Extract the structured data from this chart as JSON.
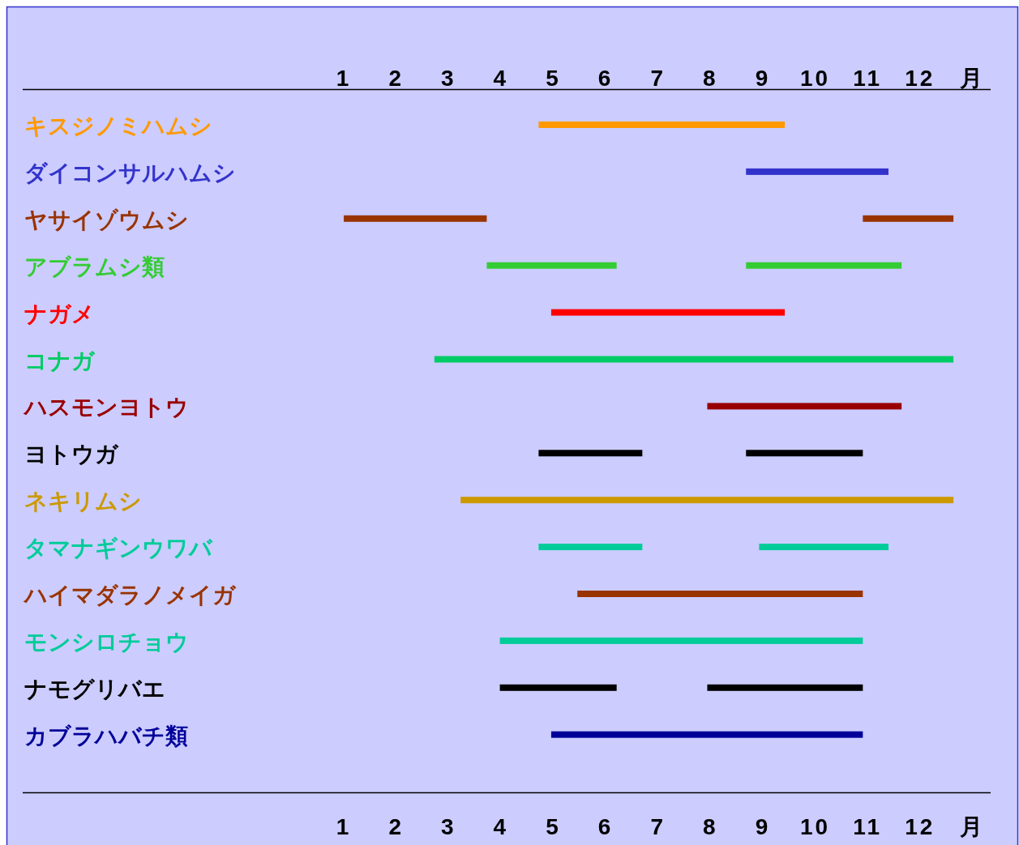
{
  "chart_data": {
    "type": "bar",
    "orientation": "horizontal",
    "categories": [
      "キスジノミハムシ",
      "ダイコンサルハムシ",
      "ヤサイゾウムシ",
      "アブラムシ類",
      "ナガメ",
      "コナガ",
      "ハスモンヨトウ",
      "ヨトウガ",
      "ネキリムシ",
      "タマナギンウワバ",
      "ハイマダラノメイガ",
      "モンシロチョウ",
      "ナモグリバエ",
      "カブラハバチ類"
    ],
    "series": [
      {
        "colors": [
          "#ff9900",
          "#3333cc",
          "#993300",
          "#33cc33",
          "#ff0000",
          "#00cc66",
          "#990000",
          "#000000",
          "#cc9900",
          "#00cc99",
          "#993300",
          "#00cc99",
          "#000000",
          "#000099"
        ],
        "base": [
          4.72,
          8.68,
          1.0,
          3.73,
          4.96,
          2.73,
          7.94,
          4.72,
          3.23,
          4.72,
          5.46,
          3.98,
          3.98,
          4.96
        ],
        "values": [
          4.7,
          2.72,
          2.73,
          2.48,
          4.46,
          9.91,
          3.71,
          1.98,
          9.41,
          1.98,
          5.45,
          6.93,
          2.23,
          5.95
        ]
      },
      {
        "colors": [
          null,
          null,
          "#993300",
          "#33cc33",
          null,
          null,
          null,
          "#000000",
          null,
          "#00cc99",
          null,
          null,
          "#000000",
          null
        ],
        "base": [
          null,
          null,
          10.91,
          8.68,
          null,
          null,
          null,
          8.68,
          null,
          8.93,
          null,
          null,
          7.94,
          null
        ],
        "values": [
          null,
          null,
          1.73,
          2.97,
          null,
          null,
          null,
          2.23,
          null,
          2.47,
          null,
          null,
          2.97,
          null
        ]
      }
    ],
    "xlim": [
      -5.13,
      13.35
    ],
    "xticks": [
      1,
      2,
      3,
      4,
      5,
      6,
      7,
      8,
      9,
      10,
      11,
      12,
      {
        "value": 13,
        "label": "月"
      }
    ],
    "x2lim": [
      -5.13,
      13.35
    ],
    "x2ticks": [
      1,
      2,
      3,
      4,
      5,
      6,
      7,
      8,
      9,
      10,
      11,
      12,
      {
        "value": 13,
        "label": "月"
      }
    ]
  }
}
